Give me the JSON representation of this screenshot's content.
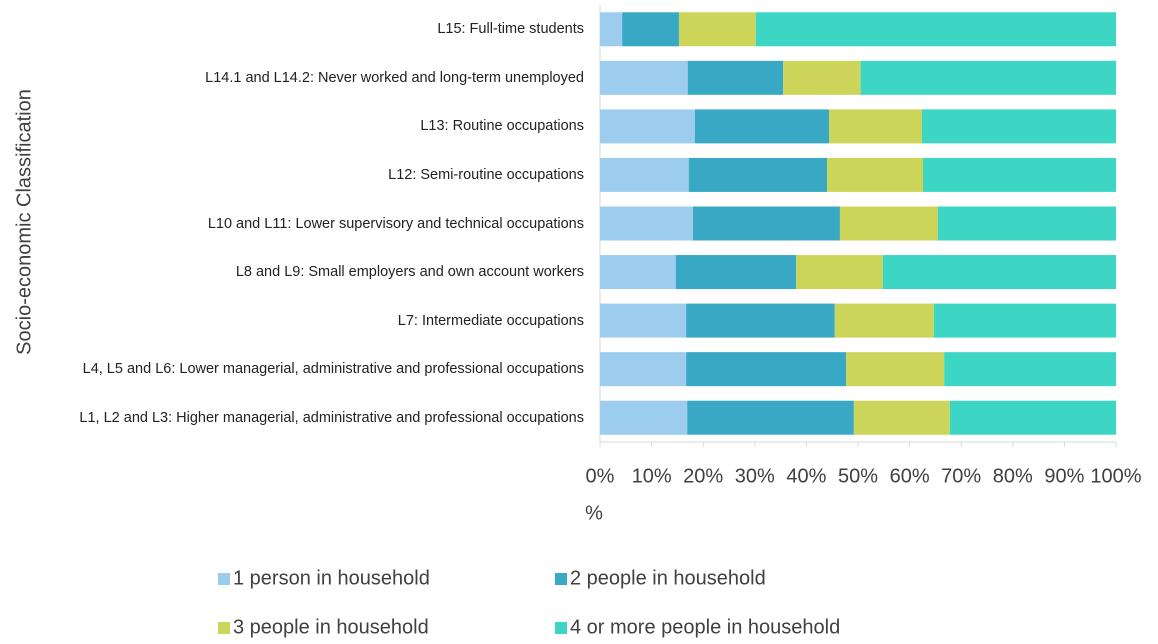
{
  "chart_data": {
    "type": "stacked-bar-horizontal",
    "x_label": "%",
    "y_label": "Socio-economic Classification",
    "categories": [
      "L15: Full-time students",
      "L14.1 and L14.2: Never worked and long-term unemployed",
      "L13: Routine occupations",
      "L12: Semi-routine occupations",
      "L10 and L11: Lower supervisory and technical occupations",
      "L8 and L9: Small employers and own account workers",
      "L7: Intermediate occupations",
      "L4, L5 and L6: Lower managerial, administrative and professional occupations",
      "L1, L2 and L3: Higher managerial, administrative and professional occupations"
    ],
    "series": [
      {
        "name": "1 person in household",
        "color": "#9dcdee",
        "values": [
          4.3,
          17,
          18.4,
          17.2,
          18,
          14.7,
          16.7,
          16.7,
          16.9
        ]
      },
      {
        "name": "2 people in household",
        "color": "#39a8c4",
        "values": [
          11,
          18.5,
          26,
          26.8,
          28.5,
          23.3,
          28.8,
          31,
          32.3
        ]
      },
      {
        "name": "3 people in household",
        "color": "#cdd45a",
        "values": [
          14.9,
          15,
          18,
          18.6,
          19,
          16.8,
          19.2,
          19,
          18.6
        ]
      },
      {
        "name": "4 or more people in household",
        "color": "#3dd6c4",
        "values": [
          69.8,
          49.5,
          37.6,
          37.4,
          34.5,
          45.2,
          35.3,
          33.3,
          32.2
        ]
      }
    ],
    "xlim": [
      0,
      100
    ],
    "xticks": [
      {
        "value": 0,
        "label": "0%"
      },
      {
        "value": 10,
        "label": "10%"
      },
      {
        "value": 20,
        "label": "20%"
      },
      {
        "value": 30,
        "label": "30%"
      },
      {
        "value": 40,
        "label": "40%"
      },
      {
        "value": 50,
        "label": "50%"
      },
      {
        "value": 60,
        "label": "60%"
      },
      {
        "value": 70,
        "label": "70%"
      },
      {
        "value": 80,
        "label": "80%"
      },
      {
        "value": 90,
        "label": "90%"
      },
      {
        "value": 100,
        "label": "100%"
      }
    ]
  }
}
